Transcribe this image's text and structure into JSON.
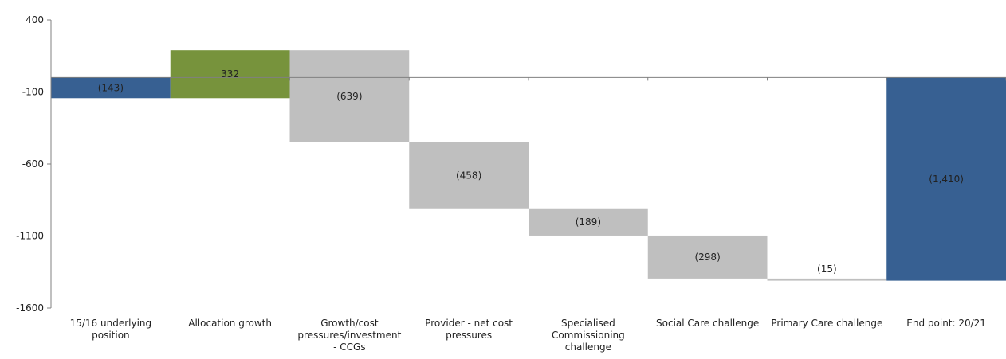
{
  "chart_data": {
    "type": "bar",
    "subtype": "waterfall",
    "title": "",
    "xlabel": "",
    "ylabel": "",
    "ylim": [
      -1600,
      400
    ],
    "yticks": [
      400,
      -100,
      -600,
      -1100,
      -1600
    ],
    "ytick_labels": [
      "400",
      "-100",
      "-600",
      "-1100",
      "-1600"
    ],
    "grid": false,
    "legend": "none",
    "colors": {
      "total": "#376092",
      "increase": "#77933C",
      "decrease": "#BFBFBF",
      "axis": "#808080"
    },
    "categories": [
      "15/16 underlying position",
      "Allocation growth",
      "Growth/cost pressures/investment - CCGs",
      "Provider - net cost pressures",
      "Specialised Commissioning challenge",
      "Social Care challenge",
      "Primary Care challenge",
      "End point: 20/21"
    ],
    "category_lines": [
      [
        "15/16 underlying",
        "position"
      ],
      [
        "Allocation growth"
      ],
      [
        "Growth/cost",
        "pressures/investment",
        "- CCGs"
      ],
      [
        "Provider - net cost",
        "pressures"
      ],
      [
        "Specialised",
        "Commissioning",
        "challenge"
      ],
      [
        "Social Care challenge"
      ],
      [
        "Primary Care challenge"
      ],
      [
        "End point: 20/21"
      ]
    ],
    "values": [
      -143,
      332,
      -639,
      -458,
      -189,
      -298,
      -15,
      -1410
    ],
    "kinds": [
      "total",
      "increase",
      "decrease",
      "decrease",
      "decrease",
      "decrease",
      "decrease",
      "total"
    ],
    "data_labels": [
      "(143)",
      "332",
      "(639)",
      "(458)",
      "(189)",
      "(298)",
      "(15)",
      "(1,410)"
    ]
  }
}
